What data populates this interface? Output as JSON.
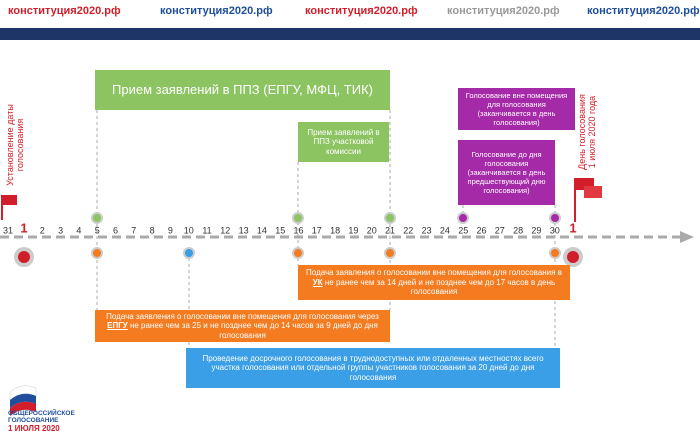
{
  "header": {
    "links": [
      "конституция2020.рф",
      "конституция2020.рф",
      "конституция2020.рф",
      "конституция2020.рф",
      "конституция2020.рф"
    ]
  },
  "timeline": {
    "days": [
      "31",
      "1",
      "2",
      "3",
      "4",
      "5",
      "6",
      "7",
      "8",
      "9",
      "10",
      "11",
      "12",
      "13",
      "14",
      "15",
      "16",
      "17",
      "18",
      "19",
      "20",
      "21",
      "22",
      "23",
      "24",
      "25",
      "26",
      "27",
      "28",
      "29",
      "30",
      "1"
    ],
    "start_label": "Установление даты голосования",
    "end_label": "День голосования 1 июля 2020 года"
  },
  "boxes": {
    "ppz_main": "Прием заявлений в ППЗ (ЕПГУ, МФЦ, ТИК)",
    "ppz_precinct": "Прием заявлений в ППЗ участковой комиссии",
    "outside_voting": "Голосование вне помещения для голосования (заканчивается в день голосования)",
    "early_voting": "Голосование до дня голосования (заканчивается в день предшествующий дню голосования)",
    "uk_application": {
      "before": "Подача заявления о голосовании вне помещения для голосования в ",
      "underlined": "УК",
      "after": " не ранее чем за 14 дней и не позднее чем до 17 часов в день голосования"
    },
    "epgu_application": {
      "before": "Подача заявления о голосовании вне помещения для голосования через ",
      "underlined": "ЕПГУ",
      "after": " не ранее чем за 25 и не позднее чем до 14 часов за 9 дней до дня голосования"
    },
    "remote_voting": "Проведение досрочного голосования в труднодоступных или отдаленных местностях всего участка голосования или отдельной группы участников голосования за 20 дней до дня голосования"
  },
  "logo": {
    "line1": "ОБЩЕРОССИЙСКОЕ",
    "line2": "ГОЛОСОВАНИЕ",
    "line3": "1 ИЮЛЯ 2020"
  }
}
